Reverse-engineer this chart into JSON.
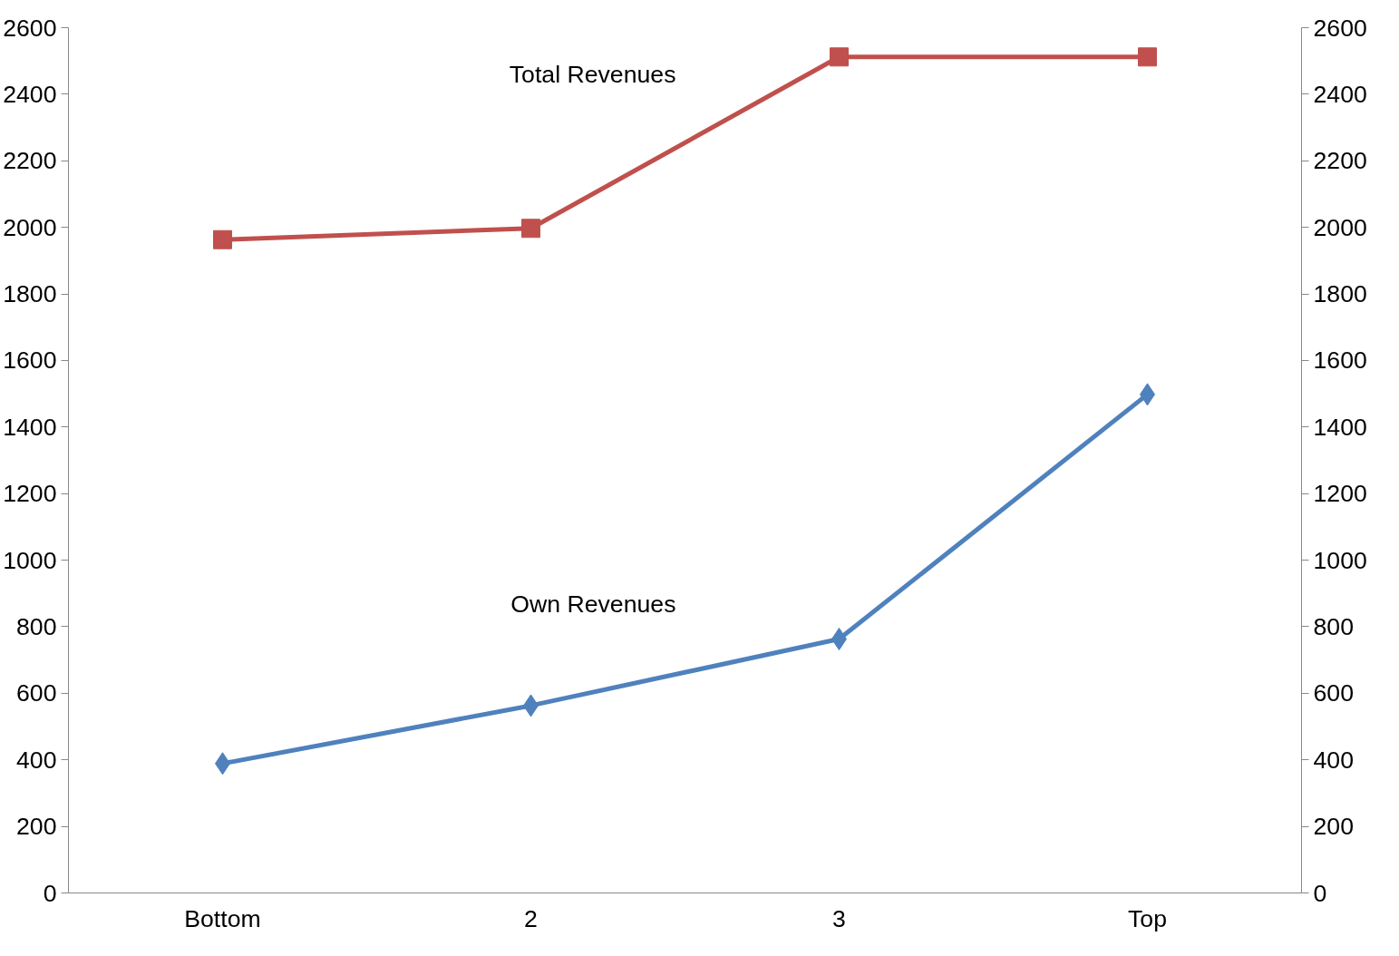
{
  "chart_data": {
    "type": "line",
    "categories": [
      "Bottom",
      "2",
      "3",
      "Top"
    ],
    "series": [
      {
        "name": "Total Revenues",
        "color": "#c0504d",
        "marker": "square",
        "values": [
          1963,
          1997,
          2512,
          2512
        ]
      },
      {
        "name": "Own Revenues",
        "color": "#4f81bd",
        "marker": "diamond",
        "values": [
          389,
          563,
          763,
          1498
        ]
      }
    ],
    "ylim": [
      0,
      2600
    ],
    "yticks": [
      0,
      200,
      400,
      600,
      800,
      1000,
      1200,
      1400,
      1600,
      1800,
      2000,
      2200,
      2400,
      2600
    ],
    "y2lim": [
      0,
      2600
    ],
    "y2ticks": [
      0,
      200,
      400,
      600,
      800,
      1000,
      1200,
      1400,
      1600,
      1800,
      2000,
      2200,
      2400,
      2600
    ],
    "grid": false,
    "line_style": "solid"
  }
}
